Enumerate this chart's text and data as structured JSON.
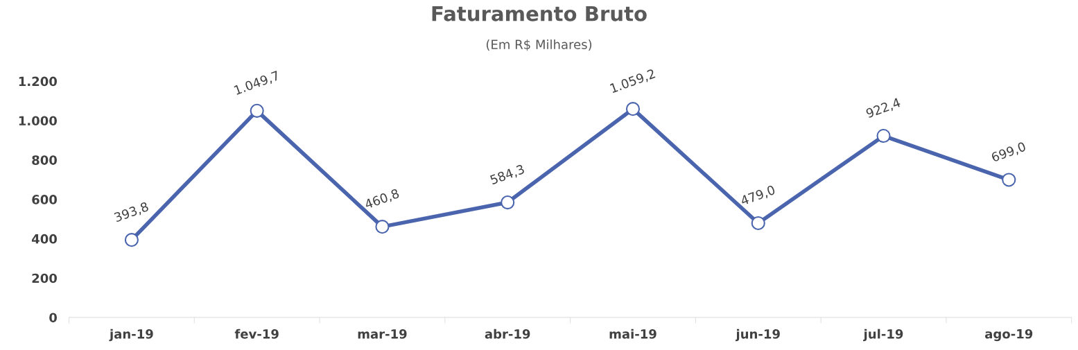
{
  "chart_data": {
    "type": "line",
    "title": "Faturamento Bruto",
    "subtitle": "(Em R$ Milhares)",
    "categories": [
      "jan-19",
      "fev-19",
      "mar-19",
      "abr-19",
      "mai-19",
      "jun-19",
      "jul-19",
      "ago-19"
    ],
    "series": [
      {
        "color": "#4a65ad",
        "values": [
          393.8,
          1049.7,
          460.8,
          584.3,
          1059.2,
          479.0,
          922.4,
          699.0
        ],
        "value_labels": [
          "393,8",
          "1.049,7",
          "460,8",
          "584,3",
          "1.059,2",
          "479,0",
          "922,4",
          "699,0"
        ]
      }
    ],
    "ylim": [
      0,
      1200
    ],
    "yticks": [
      0,
      200,
      400,
      600,
      800,
      {
        "value": 1000,
        "label": "1.000"
      },
      {
        "value": 1200,
        "label": "1.200"
      }
    ],
    "grid": false,
    "legend": false,
    "marker": "circle",
    "line_style": "solid"
  }
}
